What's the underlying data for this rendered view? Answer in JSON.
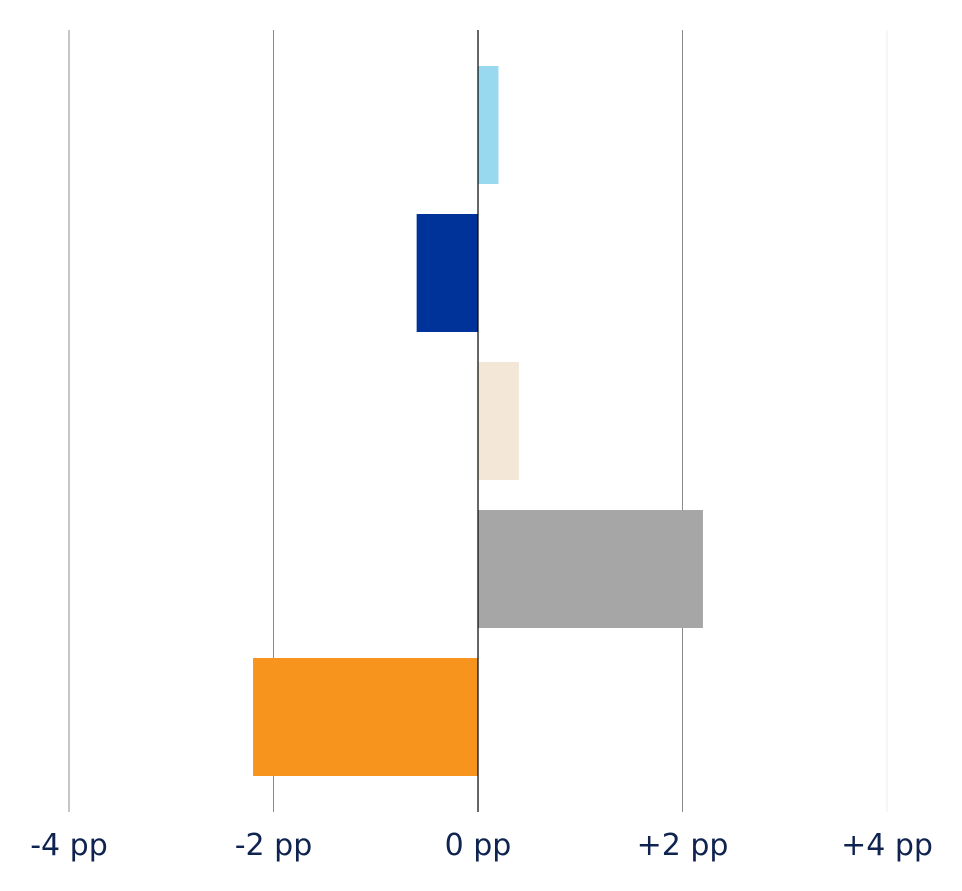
{
  "chart_data": {
    "type": "bar",
    "orientation": "horizontal",
    "title": "",
    "xlabel": "",
    "ylabel": "",
    "xlim": [
      -4,
      4
    ],
    "grid": true,
    "legend": "none",
    "x_ticks": [
      {
        "value": -4,
        "label": "-4 pp"
      },
      {
        "value": -2,
        "label": "-2 pp"
      },
      {
        "value": 0,
        "label": "0 pp"
      },
      {
        "value": 2,
        "label": "+2 pp"
      },
      {
        "value": 4,
        "label": "+4 pp"
      }
    ],
    "values": [
      0.2,
      -0.6,
      0.4,
      2.2,
      -2.2
    ],
    "colors": [
      "#99d9f0",
      "#003399",
      "#f3e8d8",
      "#a6a6a6",
      "#f7941e"
    ],
    "gridline_color": "#8c8c8c",
    "zero_line_color": "#000000"
  }
}
